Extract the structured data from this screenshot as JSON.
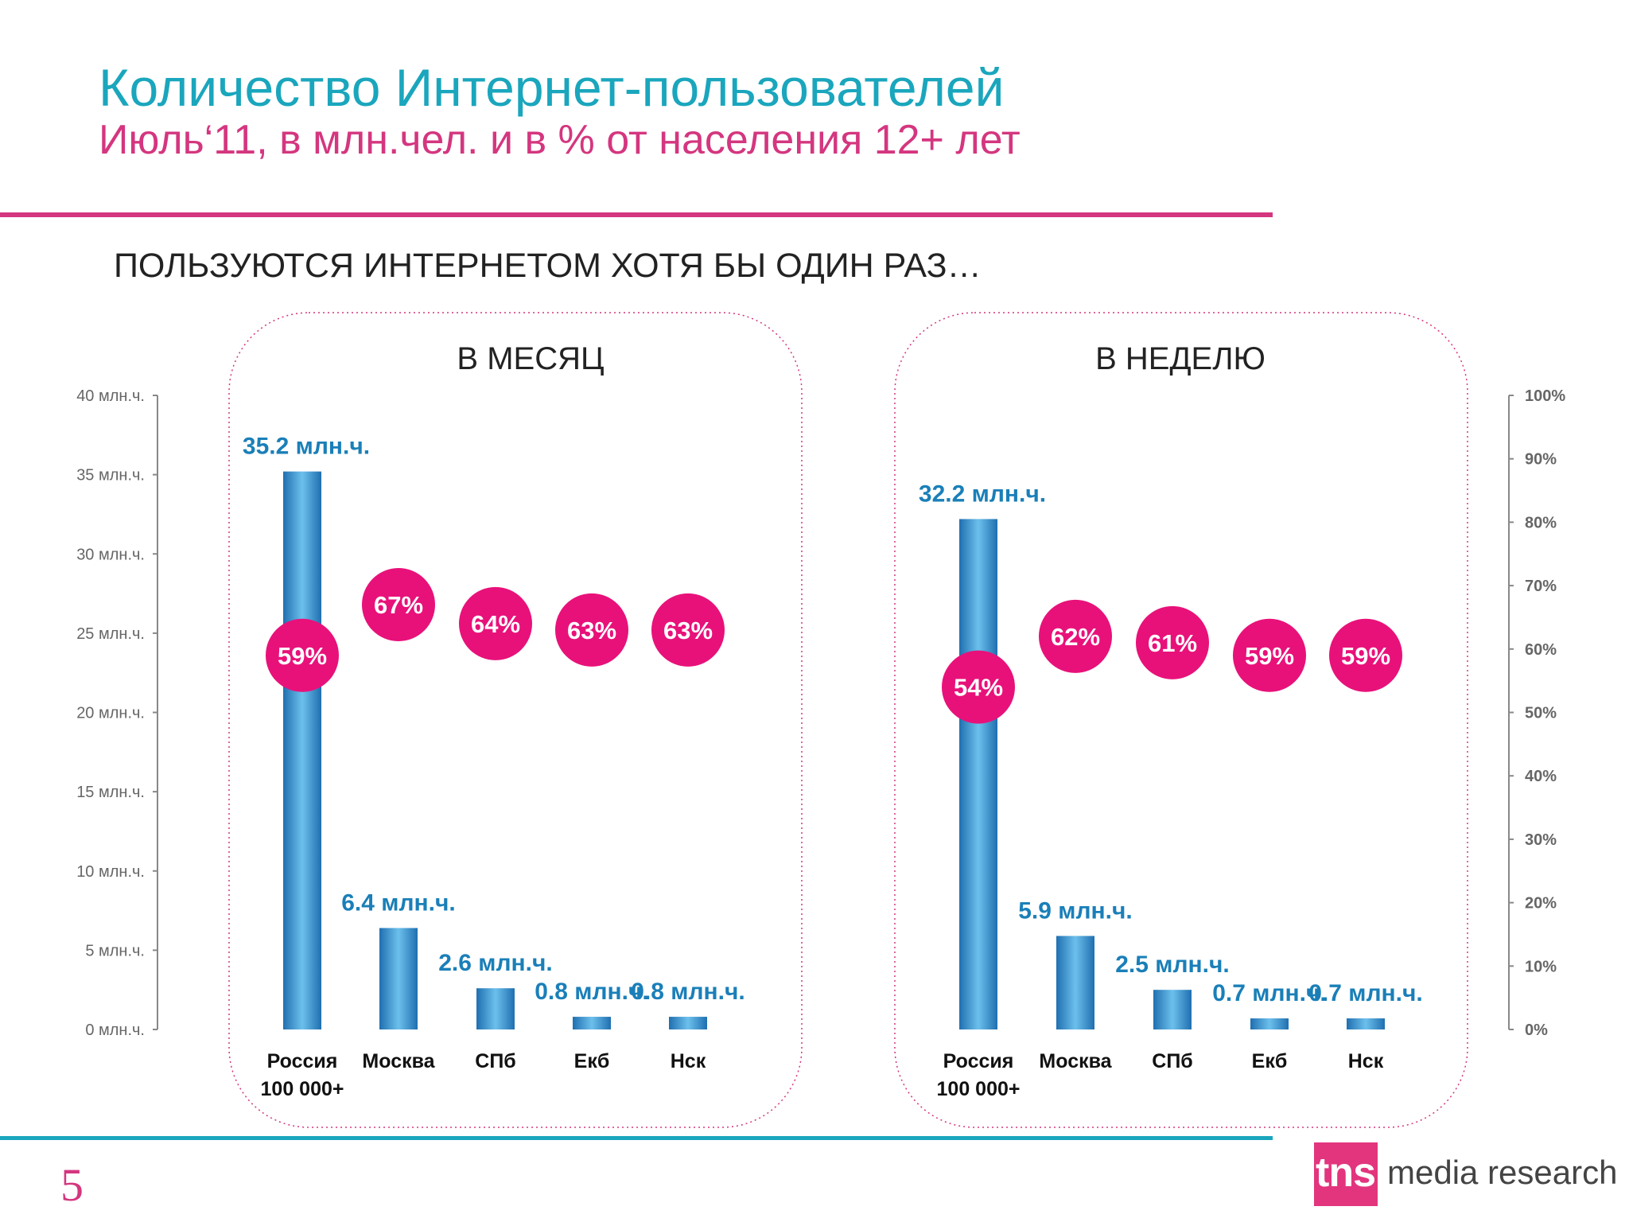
{
  "header": {
    "title": "Количество Интернет-пользователей",
    "subtitle": "Июль‘11, в млн.чел. и в % от населения 12+ лет"
  },
  "section_label": "ПОЛЬЗУЮТСЯ ИНТЕРНЕТОМ ХОТЯ БЫ ОДИН РАЗ…",
  "page_number": "5",
  "logo": {
    "mark": "tns",
    "text": "media research",
    "color": "#e2357e"
  },
  "colors": {
    "bar": "#2e8dcc",
    "bubble": "#e8117a",
    "value_label": "#1a7fb8",
    "title": "#1aa6bd",
    "accent": "#d4367f"
  },
  "chart_data": {
    "type": "bar",
    "categories": [
      "Россия 100 000+",
      "Москва",
      "СПб",
      "Екб",
      "Нск"
    ],
    "category_lines": [
      [
        "Россия",
        "100 000+"
      ],
      [
        "Москва"
      ],
      [
        "СПб"
      ],
      [
        "Екб"
      ],
      [
        "Нск"
      ]
    ],
    "left_axis": {
      "ylim": [
        0,
        40
      ],
      "ticks": [
        0,
        5,
        10,
        15,
        20,
        25,
        30,
        35,
        40
      ],
      "tick_labels": [
        "0 млн.ч.",
        "5 млн.ч.",
        "10 млн.ч.",
        "15 млн.ч.",
        "20 млн.ч.",
        "25 млн.ч.",
        "30 млн.ч.",
        "35 млн.ч.",
        "40 млн.ч."
      ]
    },
    "right_axis": {
      "ylim": [
        0,
        100
      ],
      "ticks": [
        0,
        10,
        20,
        30,
        40,
        50,
        60,
        70,
        80,
        90,
        100
      ],
      "tick_labels": [
        "0%",
        "10%",
        "20%",
        "30%",
        "40%",
        "50%",
        "60%",
        "70%",
        "80%",
        "90%",
        "100%"
      ]
    },
    "panels": [
      {
        "title": "В МЕСЯЦ",
        "values": [
          35.2,
          6.4,
          2.6,
          0.8,
          0.8
        ],
        "value_labels": [
          "35.2 млн.ч.",
          "6.4 млн.ч.",
          "2.6 млн.ч.",
          "0.8 млн.ч.",
          "0.8 млн.ч."
        ],
        "percents": [
          59,
          67,
          64,
          63,
          63
        ],
        "percent_labels": [
          "59%",
          "67%",
          "64%",
          "63%",
          "63%"
        ]
      },
      {
        "title": "В НЕДЕЛЮ",
        "values": [
          32.2,
          5.9,
          2.5,
          0.7,
          0.7
        ],
        "value_labels": [
          "32.2 млн.ч.",
          "5.9 млн.ч.",
          "2.5 млн.ч.",
          "0.7 млн.ч.",
          "0.7 млн.ч."
        ],
        "percents": [
          54,
          62,
          61,
          59,
          59
        ],
        "percent_labels": [
          "54%",
          "62%",
          "61%",
          "59%",
          "59%"
        ]
      }
    ]
  }
}
